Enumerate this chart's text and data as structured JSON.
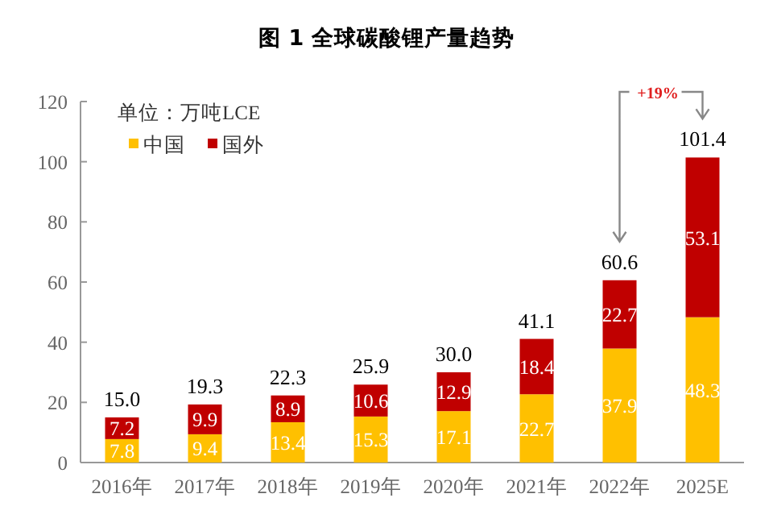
{
  "chart_data": {
    "type": "bar",
    "title": "图 1  全球碳酸锂产量趋势",
    "stacked": true,
    "categories": [
      "2016年",
      "2017年",
      "2018年",
      "2019年",
      "2020年",
      "2021年",
      "2022年",
      "2025E"
    ],
    "series": [
      {
        "name": "中国",
        "color": "#ffc000",
        "values": [
          7.8,
          9.4,
          13.4,
          15.3,
          17.1,
          22.7,
          37.9,
          48.3
        ]
      },
      {
        "name": "国外",
        "color": "#c00000",
        "values": [
          7.2,
          9.9,
          8.9,
          10.6,
          12.9,
          18.4,
          22.7,
          53.1
        ]
      }
    ],
    "totals": [
      "15.0",
      "19.3",
      "22.3",
      "25.9",
      "30.0",
      "41.1",
      "60.6",
      "101.4"
    ],
    "data_labels": true,
    "ylim": [
      0,
      120
    ],
    "yticks": [
      0,
      20,
      40,
      60,
      80,
      100,
      120
    ],
    "legend": "top left",
    "annotations": [
      "单位：万吨LCE",
      "+19%"
    ]
  }
}
